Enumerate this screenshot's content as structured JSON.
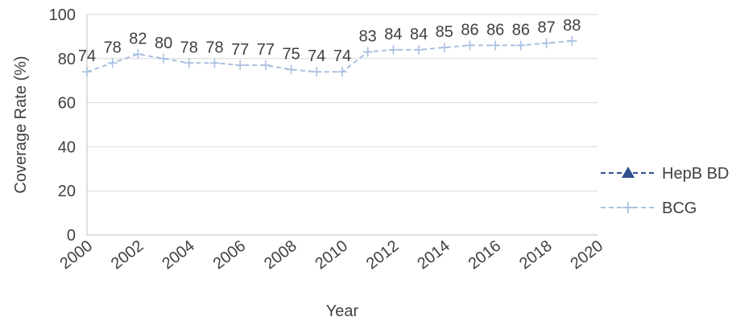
{
  "chart_data": {
    "type": "line",
    "title": "",
    "xlabel": "Year",
    "ylabel": "Coverage Rate (%)",
    "xlim": [
      2000,
      2020
    ],
    "ylim": [
      0,
      100
    ],
    "x_ticks": [
      "2000",
      "2002",
      "2004",
      "2006",
      "2008",
      "2010",
      "2012",
      "2014",
      "2016",
      "2018",
      "2020"
    ],
    "y_ticks": [
      "0",
      "20",
      "40",
      "60",
      "80",
      "100"
    ],
    "grid": "horizontal",
    "legend_position": "right",
    "series": [
      {
        "name": "HepB BD",
        "color": "#2f4f8f",
        "marker": "triangle",
        "x": [],
        "values": []
      },
      {
        "name": "BCG",
        "color": "#a9c0e0",
        "marker": "plus",
        "x": [
          2000,
          2001,
          2002,
          2003,
          2004,
          2005,
          2006,
          2007,
          2008,
          2009,
          2010,
          2011,
          2012,
          2013,
          2014,
          2015,
          2016,
          2017,
          2018,
          2019
        ],
        "values": [
          74,
          78,
          82,
          80,
          78,
          78,
          77,
          77,
          75,
          74,
          74,
          83,
          84,
          84,
          85,
          86,
          86,
          86,
          87,
          88
        ]
      }
    ]
  }
}
